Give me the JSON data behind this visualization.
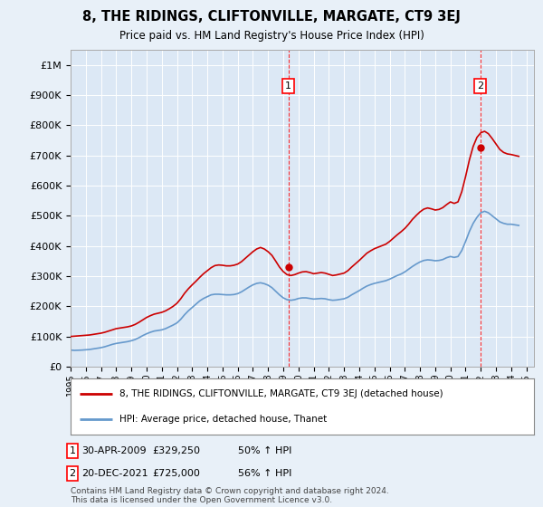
{
  "title": "8, THE RIDINGS, CLIFTONVILLE, MARGATE, CT9 3EJ",
  "subtitle": "Price paid vs. HM Land Registry's House Price Index (HPI)",
  "background_color": "#e8f0f8",
  "plot_bg_color": "#dce8f5",
  "ylabel_ticks": [
    "£0",
    "£100K",
    "£200K",
    "£300K",
    "£400K",
    "£500K",
    "£600K",
    "£700K",
    "£800K",
    "£900K",
    "£1M"
  ],
  "ytick_values": [
    0,
    100000,
    200000,
    300000,
    400000,
    500000,
    600000,
    700000,
    800000,
    900000,
    1000000
  ],
  "ylim": [
    0,
    1050000
  ],
  "xlim_start": 1995.0,
  "xlim_end": 2025.5,
  "xtick_years": [
    1995,
    1996,
    1997,
    1998,
    1999,
    2000,
    2001,
    2002,
    2003,
    2004,
    2005,
    2006,
    2007,
    2008,
    2009,
    2010,
    2011,
    2012,
    2013,
    2014,
    2015,
    2016,
    2017,
    2018,
    2019,
    2020,
    2021,
    2022,
    2023,
    2024,
    2025
  ],
  "red_line_color": "#cc0000",
  "blue_line_color": "#6699cc",
  "marker1_x": 2009.33,
  "marker1_y": 329250,
  "marker1_label": "1",
  "marker1_date": "30-APR-2009",
  "marker1_price": "£329,250",
  "marker1_hpi": "50% ↑ HPI",
  "marker2_x": 2021.97,
  "marker2_y": 725000,
  "marker2_label": "2",
  "marker2_date": "20-DEC-2021",
  "marker2_price": "£725,000",
  "marker2_hpi": "56% ↑ HPI",
  "legend_line1": "8, THE RIDINGS, CLIFTONVILLE, MARGATE, CT9 3EJ (detached house)",
  "legend_line2": "HPI: Average price, detached house, Thanet",
  "footer": "Contains HM Land Registry data © Crown copyright and database right 2024.\nThis data is licensed under the Open Government Licence v3.0.",
  "hpi_data_x": [
    1995.0,
    1995.25,
    1995.5,
    1995.75,
    1996.0,
    1996.25,
    1996.5,
    1996.75,
    1997.0,
    1997.25,
    1997.5,
    1997.75,
    1998.0,
    1998.25,
    1998.5,
    1998.75,
    1999.0,
    1999.25,
    1999.5,
    1999.75,
    2000.0,
    2000.25,
    2000.5,
    2000.75,
    2001.0,
    2001.25,
    2001.5,
    2001.75,
    2002.0,
    2002.25,
    2002.5,
    2002.75,
    2003.0,
    2003.25,
    2003.5,
    2003.75,
    2004.0,
    2004.25,
    2004.5,
    2004.75,
    2005.0,
    2005.25,
    2005.5,
    2005.75,
    2006.0,
    2006.25,
    2006.5,
    2006.75,
    2007.0,
    2007.25,
    2007.5,
    2007.75,
    2008.0,
    2008.25,
    2008.5,
    2008.75,
    2009.0,
    2009.25,
    2009.5,
    2009.75,
    2010.0,
    2010.25,
    2010.5,
    2010.75,
    2011.0,
    2011.25,
    2011.5,
    2011.75,
    2012.0,
    2012.25,
    2012.5,
    2012.75,
    2013.0,
    2013.25,
    2013.5,
    2013.75,
    2014.0,
    2014.25,
    2014.5,
    2014.75,
    2015.0,
    2015.25,
    2015.5,
    2015.75,
    2016.0,
    2016.25,
    2016.5,
    2016.75,
    2017.0,
    2017.25,
    2017.5,
    2017.75,
    2018.0,
    2018.25,
    2018.5,
    2018.75,
    2019.0,
    2019.25,
    2019.5,
    2019.75,
    2020.0,
    2020.25,
    2020.5,
    2020.75,
    2021.0,
    2021.25,
    2021.5,
    2021.75,
    2022.0,
    2022.25,
    2022.5,
    2022.75,
    2023.0,
    2023.25,
    2023.5,
    2023.75,
    2024.0,
    2024.25,
    2024.5
  ],
  "hpi_data_y": [
    55000,
    54000,
    54500,
    55000,
    56000,
    57000,
    59000,
    61000,
    63000,
    66000,
    70000,
    74000,
    77000,
    79000,
    81000,
    83000,
    86000,
    90000,
    96000,
    103000,
    109000,
    114000,
    118000,
    120000,
    122000,
    126000,
    132000,
    138000,
    145000,
    157000,
    172000,
    185000,
    196000,
    207000,
    218000,
    226000,
    232000,
    238000,
    240000,
    240000,
    239000,
    238000,
    238000,
    239000,
    242000,
    248000,
    256000,
    264000,
    271000,
    276000,
    278000,
    275000,
    270000,
    262000,
    250000,
    238000,
    228000,
    222000,
    220000,
    222000,
    226000,
    228000,
    228000,
    226000,
    224000,
    225000,
    226000,
    225000,
    222000,
    220000,
    221000,
    223000,
    225000,
    230000,
    238000,
    245000,
    252000,
    260000,
    267000,
    272000,
    276000,
    279000,
    282000,
    285000,
    290000,
    296000,
    302000,
    307000,
    314000,
    323000,
    332000,
    340000,
    347000,
    352000,
    354000,
    353000,
    351000,
    352000,
    355000,
    361000,
    365000,
    362000,
    365000,
    385000,
    415000,
    448000,
    475000,
    495000,
    510000,
    515000,
    510000,
    500000,
    490000,
    480000,
    475000,
    472000,
    472000,
    470000,
    468000
  ],
  "red_line_y": [
    100000,
    101000,
    102000,
    103000,
    104000,
    105000,
    107000,
    109000,
    111000,
    114000,
    118000,
    122000,
    126000,
    128000,
    130000,
    132000,
    135000,
    140000,
    147000,
    155000,
    163000,
    169000,
    174000,
    177000,
    180000,
    185000,
    192000,
    200000,
    210000,
    225000,
    243000,
    258000,
    271000,
    283000,
    296000,
    308000,
    318000,
    328000,
    335000,
    337000,
    336000,
    334000,
    334000,
    336000,
    340000,
    348000,
    359000,
    370000,
    381000,
    390000,
    395000,
    390000,
    381000,
    369000,
    350000,
    330000,
    315000,
    305000,
    302000,
    305000,
    310000,
    314000,
    315000,
    312000,
    308000,
    310000,
    312000,
    310000,
    306000,
    302000,
    304000,
    307000,
    310000,
    318000,
    330000,
    341000,
    352000,
    364000,
    376000,
    384000,
    391000,
    396000,
    401000,
    406000,
    415000,
    426000,
    437000,
    447000,
    458000,
    472000,
    488000,
    501000,
    513000,
    522000,
    526000,
    523000,
    519000,
    521000,
    527000,
    537000,
    546000,
    541000,
    546000,
    580000,
    630000,
    685000,
    730000,
    760000,
    775000,
    780000,
    772000,
    756000,
    738000,
    720000,
    710000,
    705000,
    703000,
    700000,
    697000
  ]
}
